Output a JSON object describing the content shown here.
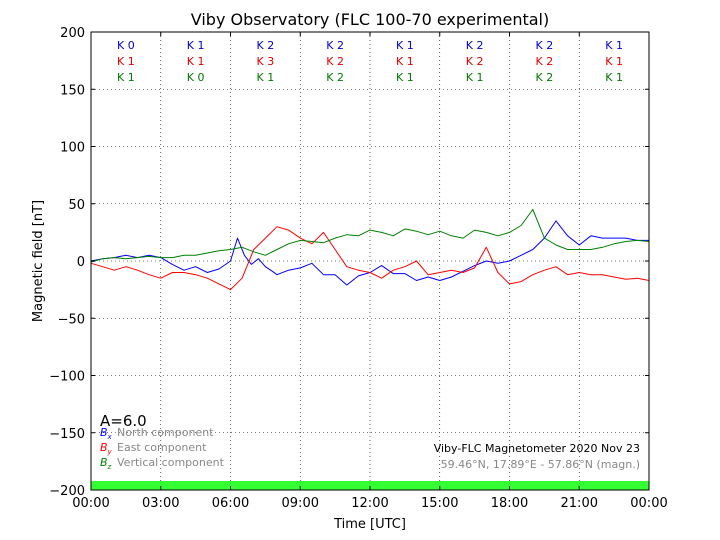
{
  "chart_data": {
    "type": "line",
    "title": "Viby Observatory (FLC 100-70 experimental)",
    "xlabel": "Time [UTC]",
    "ylabel": "Magnetic field [nT]",
    "xlim": [
      0,
      24
    ],
    "ylim": [
      -200,
      200
    ],
    "x_ticks": [
      0,
      3,
      6,
      9,
      12,
      15,
      18,
      21,
      24
    ],
    "x_tick_labels": [
      "00:00",
      "03:00",
      "06:00",
      "09:00",
      "12:00",
      "15:00",
      "18:00",
      "21:00",
      "00:00"
    ],
    "y_ticks": [
      -200,
      -150,
      -100,
      -50,
      0,
      50,
      100,
      150,
      200
    ],
    "y_tick_labels": [
      "−200",
      "−150",
      "−100",
      "−50",
      "0",
      "50",
      "100",
      "150",
      "200"
    ],
    "grid": true,
    "grid_style": "dotted",
    "activity_index": "A=6.0",
    "k_index_rows": [
      {
        "component": "Bx",
        "color": "#0000cc",
        "labels": [
          "K 0",
          "K 1",
          "K 2",
          "K 2",
          "K 1",
          "K 2",
          "K 2",
          "K 1"
        ]
      },
      {
        "component": "By",
        "color": "#dd0000",
        "labels": [
          "K 1",
          "K 1",
          "K 3",
          "K 2",
          "K 1",
          "K 2",
          "K 2",
          "K 1"
        ]
      },
      {
        "component": "Bz",
        "color": "#007700",
        "labels": [
          "K 1",
          "K 0",
          "K 1",
          "K 2",
          "K 1",
          "K 1",
          "K 2",
          "K 1"
        ]
      }
    ],
    "legend_position": "bottom-left",
    "series": [
      {
        "name": "North component",
        "symbol": "B",
        "subscript": "x",
        "color": "#0000ff",
        "x": [
          0,
          0.5,
          1,
          1.5,
          2,
          2.5,
          3,
          3.5,
          4,
          4.5,
          5,
          5.5,
          6,
          6.3,
          6.6,
          6.9,
          7.2,
          7.5,
          7.8,
          8,
          8.5,
          9,
          9.5,
          10,
          10.5,
          11,
          11.5,
          12,
          12.5,
          13,
          13.5,
          14,
          14.5,
          15,
          15.5,
          16,
          16.5,
          17,
          17.5,
          18,
          18.5,
          19,
          19.5,
          20,
          20.5,
          21,
          21.5,
          22,
          22.5,
          23,
          23.5,
          24
        ],
        "y": [
          0,
          2,
          3,
          5,
          3,
          5,
          3,
          -3,
          -8,
          -5,
          -10,
          -7,
          0,
          20,
          5,
          -3,
          2,
          -5,
          -9,
          -12,
          -8,
          -6,
          -2,
          -12,
          -12,
          -21,
          -13,
          -10,
          -4,
          -11,
          -11,
          -17,
          -14,
          -17,
          -14,
          -9,
          -4,
          0,
          -2,
          0,
          5,
          10,
          20,
          35,
          22,
          14,
          22,
          20,
          20,
          20,
          18,
          18
        ]
      },
      {
        "name": "East component",
        "symbol": "B",
        "subscript": "y",
        "color": "#ff0000",
        "x": [
          0,
          0.5,
          1,
          1.5,
          2,
          2.5,
          3,
          3.5,
          4,
          4.5,
          5,
          5.5,
          6,
          6.5,
          7,
          7.5,
          8,
          8.5,
          9,
          9.5,
          10,
          10.5,
          11,
          11.5,
          12,
          12.5,
          13,
          13.5,
          14,
          14.5,
          15,
          15.5,
          16,
          16.5,
          17,
          17.5,
          18,
          18.5,
          19,
          19.5,
          20,
          20.5,
          21,
          21.5,
          22,
          22.5,
          23,
          23.5,
          24
        ],
        "y": [
          -2,
          -5,
          -8,
          -5,
          -8,
          -12,
          -15,
          -10,
          -10,
          -12,
          -15,
          -20,
          -25,
          -15,
          10,
          20,
          30,
          27,
          20,
          15,
          25,
          10,
          -5,
          -8,
          -10,
          -15,
          -8,
          -5,
          0,
          -12,
          -10,
          -8,
          -10,
          -6,
          12,
          -10,
          -20,
          -18,
          -12,
          -8,
          -5,
          -12,
          -10,
          -12,
          -12,
          -14,
          -16,
          -15,
          -17
        ]
      },
      {
        "name": "Vertical component",
        "symbol": "B",
        "subscript": "z",
        "color": "#008000",
        "x": [
          0,
          0.5,
          1,
          1.5,
          2,
          2.5,
          3,
          3.5,
          4,
          4.5,
          5,
          5.5,
          6,
          6.5,
          7,
          7.5,
          8,
          8.5,
          9,
          9.5,
          10,
          10.5,
          11,
          11.5,
          12,
          12.5,
          13,
          13.5,
          14,
          14.5,
          15,
          15.5,
          16,
          16.5,
          17,
          17.5,
          18,
          18.5,
          19,
          19.5,
          20,
          20.5,
          21,
          21.5,
          22,
          22.5,
          23,
          23.5,
          24
        ],
        "y": [
          -1,
          2,
          3,
          2,
          3,
          4,
          3,
          3,
          5,
          5,
          7,
          9,
          10,
          12,
          8,
          5,
          10,
          15,
          18,
          17,
          16,
          20,
          23,
          22,
          27,
          25,
          22,
          28,
          26,
          23,
          26,
          22,
          20,
          27,
          25,
          22,
          25,
          31,
          45,
          20,
          14,
          10,
          10,
          10,
          12,
          15,
          17,
          18,
          17
        ]
      }
    ],
    "footer": {
      "line1": "Viby-FLC Magnetometer 2020 Nov 23",
      "line2": "59.46°N, 17.89°E - 57.86°N (magn.)"
    },
    "quality_bar_color": "#33ff33"
  }
}
